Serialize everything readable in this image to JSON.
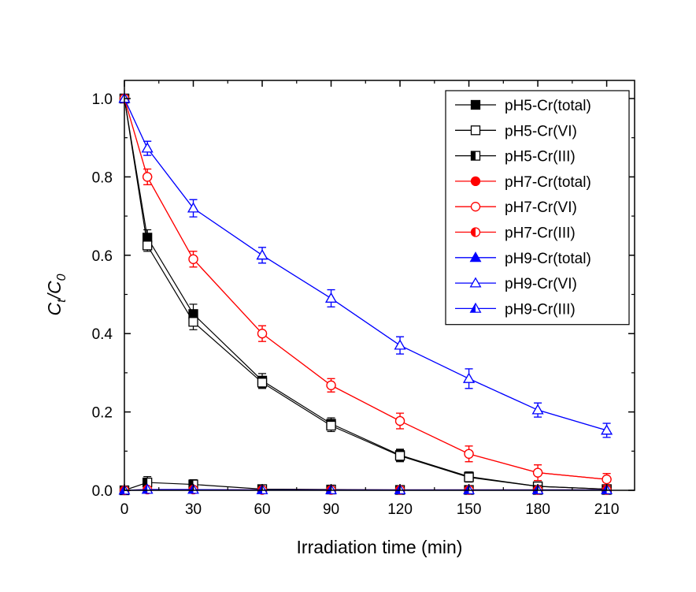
{
  "chart_data": {
    "type": "line",
    "title": "",
    "xlabel": "Irradiation time (min)",
    "ylabel_main": "C",
    "ylabel_sub1": "t",
    "ylabel_slash": "/C",
    "ylabel_sub2": "0",
    "xlim": [
      0,
      220
    ],
    "ylim": [
      0,
      1.0
    ],
    "xticks": [
      0,
      30,
      60,
      90,
      120,
      150,
      180,
      210
    ],
    "xtick_labels": [
      "0",
      "30",
      "60",
      "90",
      "120",
      "150",
      "180",
      "210"
    ],
    "yticks": [
      0,
      0.2,
      0.4,
      0.6,
      0.8,
      1.0
    ],
    "ytick_labels": [
      "0.0",
      "0.2",
      "0.4",
      "0.6",
      "0.8",
      "1.0"
    ],
    "grid": false,
    "legend_position": "top-right",
    "series": [
      {
        "name": "pH5-Cr(total)",
        "color": "#000000",
        "marker": "square",
        "fill": "full",
        "x": [
          0,
          10,
          30,
          60,
          90,
          120,
          150,
          180,
          210
        ],
        "y": [
          1.0,
          0.645,
          0.45,
          0.28,
          0.17,
          0.09,
          0.035,
          0.01,
          0.003
        ],
        "err": [
          0,
          0.02,
          0.025,
          0.018,
          0.015,
          0.015,
          0.012,
          0,
          0
        ]
      },
      {
        "name": "pH5-Cr(VI)",
        "color": "#000000",
        "marker": "square",
        "fill": "none",
        "x": [
          0,
          10,
          30,
          60,
          90,
          120,
          150,
          180,
          210
        ],
        "y": [
          1.0,
          0.625,
          0.43,
          0.275,
          0.165,
          0.088,
          0.033,
          0.01,
          0.003
        ],
        "err": [
          0,
          0.015,
          0.02,
          0.015,
          0.015,
          0.015,
          0.012,
          0,
          0
        ]
      },
      {
        "name": "pH5-Cr(III)",
        "color": "#000000",
        "marker": "square",
        "fill": "left",
        "x": [
          0,
          10,
          30,
          60,
          90,
          120,
          150,
          180,
          210
        ],
        "y": [
          0.0,
          0.02,
          0.015,
          0.003,
          0.002,
          0.001,
          0.001,
          0.001,
          0.001
        ],
        "err": [
          0,
          0.015,
          0.012,
          0.005,
          0,
          0,
          0,
          0,
          0
        ]
      },
      {
        "name": "pH7-Cr(total)",
        "color": "#ff0000",
        "marker": "circle",
        "fill": "full",
        "x": [
          0,
          10,
          30,
          60,
          90,
          120,
          150,
          180,
          210
        ],
        "y": [
          1.0,
          0.8,
          0.59,
          0.4,
          0.268,
          0.177,
          0.093,
          0.045,
          0.028
        ],
        "err": [
          0,
          0.02,
          0.02,
          0.02,
          0.017,
          0.02,
          0.02,
          0.02,
          0.015
        ]
      },
      {
        "name": "pH7-Cr(VI)",
        "color": "#ff0000",
        "marker": "circle",
        "fill": "none",
        "x": [
          0,
          10,
          30,
          60,
          90,
          120,
          150,
          180,
          210
        ],
        "y": [
          1.0,
          0.8,
          0.59,
          0.4,
          0.268,
          0.177,
          0.093,
          0.045,
          0.028
        ],
        "err": [
          0,
          0.02,
          0.02,
          0.02,
          0.017,
          0.02,
          0.02,
          0.02,
          0.015
        ]
      },
      {
        "name": "pH7-Cr(III)",
        "color": "#ff0000",
        "marker": "circle",
        "fill": "left",
        "x": [
          0,
          10,
          30,
          60,
          90,
          120,
          150,
          180,
          210
        ],
        "y": [
          0.0,
          0.002,
          0.002,
          0.001,
          0.001,
          0.001,
          0.001,
          0.001,
          0.001
        ],
        "err": [
          0,
          0,
          0,
          0,
          0,
          0,
          0,
          0,
          0
        ]
      },
      {
        "name": "pH9-Cr(total)",
        "color": "#0000ff",
        "marker": "triangle",
        "fill": "full",
        "x": [
          0,
          10,
          30,
          60,
          90,
          120,
          150,
          180,
          210
        ],
        "y": [
          1.0,
          0.873,
          0.72,
          0.6,
          0.49,
          0.37,
          0.285,
          0.205,
          0.153
        ],
        "err": [
          0,
          0.018,
          0.022,
          0.02,
          0.022,
          0.022,
          0.025,
          0.018,
          0.018
        ]
      },
      {
        "name": "pH9-Cr(VI)",
        "color": "#0000ff",
        "marker": "triangle",
        "fill": "none",
        "x": [
          0,
          10,
          30,
          60,
          90,
          120,
          150,
          180,
          210
        ],
        "y": [
          1.0,
          0.873,
          0.72,
          0.6,
          0.49,
          0.37,
          0.285,
          0.205,
          0.153
        ],
        "err": [
          0,
          0.018,
          0.022,
          0.02,
          0.022,
          0.022,
          0.025,
          0.018,
          0.018
        ]
      },
      {
        "name": "pH9-Cr(III)",
        "color": "#0000ff",
        "marker": "triangle",
        "fill": "left",
        "x": [
          0,
          10,
          30,
          60,
          90,
          120,
          150,
          180,
          210
        ],
        "y": [
          0.0,
          0.002,
          0.002,
          0.001,
          0.001,
          0.001,
          0.001,
          0.001,
          0.001
        ],
        "err": [
          0,
          0,
          0,
          0,
          0,
          0,
          0,
          0,
          0
        ]
      }
    ]
  }
}
